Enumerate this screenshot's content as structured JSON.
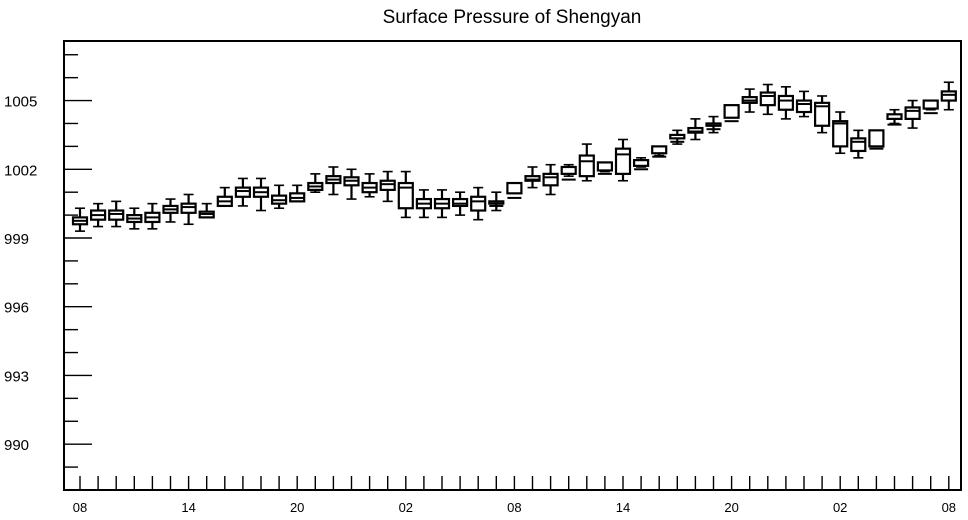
{
  "chart_data": {
    "type": "box",
    "title": "Surface Pressure of Shengyan",
    "xlabel": "",
    "ylabel": "",
    "ylim": [
      988.0,
      1007.6
    ],
    "y_ticks": [
      990,
      993,
      996,
      999,
      1002,
      1005
    ],
    "x_tick_labels": [
      "08",
      "14",
      "20",
      "02",
      "08",
      "14",
      "20",
      "02",
      "08"
    ],
    "x_tick_label_index": [
      0,
      6,
      12,
      18,
      24,
      30,
      36,
      42,
      48
    ],
    "grid": false,
    "legend": "none",
    "series": [
      {
        "x": [
          0,
          1,
          2,
          3,
          4,
          5,
          6,
          7,
          8,
          9,
          10,
          11,
          12,
          13,
          14,
          15,
          16,
          17,
          18,
          19,
          20,
          21,
          22,
          23,
          24,
          25,
          26,
          27,
          28,
          29,
          30,
          31,
          32,
          33,
          34,
          35,
          36,
          37,
          38,
          39,
          40,
          41,
          42,
          43,
          44,
          45,
          46,
          47,
          48
        ],
        "whisker_low": [
          999.3,
          999.5,
          999.5,
          999.4,
          999.4,
          999.7,
          999.6,
          1000.1,
          1000.5,
          1000.4,
          1000.2,
          1000.3,
          1000.7,
          1001.0,
          1000.9,
          1000.7,
          1000.8,
          1000.6,
          999.9,
          999.9,
          999.9,
          1000.0,
          999.8,
          1000.2,
          1001.0,
          1001.2,
          1000.9,
          1001.7,
          1001.5,
          1001.9,
          1001.5,
          1002.1,
          1002.6,
          1003.1,
          1003.3,
          1003.6,
          1004.4,
          1004.5,
          1004.4,
          1004.2,
          1004.3,
          1003.6,
          1002.7,
          1002.5,
          1003.3,
          1004.0,
          1003.8,
          1004.6,
          1004.6
        ],
        "q1": [
          999.6,
          999.8,
          999.8,
          999.7,
          999.7,
          1000.1,
          1000.1,
          999.9,
          1000.4,
          1000.8,
          1000.8,
          1000.5,
          1000.6,
          1001.1,
          1001.4,
          1001.3,
          1001.0,
          1001.1,
          1000.3,
          1000.3,
          1000.3,
          1000.4,
          1000.2,
          1000.5,
          1001.4,
          1001.5,
          1001.3,
          1002.1,
          1001.7,
          1002.3,
          1001.8,
          1002.4,
          1003.0,
          1003.5,
          1003.6,
          1004.0,
          1004.8,
          1004.9,
          1004.8,
          1004.6,
          1004.5,
          1003.9,
          1003.0,
          1002.8,
          1003.7,
          1004.4,
          1004.2,
          1005.0,
          1005.0
        ],
        "median": [
          999.75,
          1000.0,
          1000.05,
          999.85,
          999.9,
          1000.25,
          1000.35,
          1000.05,
          1000.6,
          1001.05,
          1001.0,
          1000.65,
          1000.75,
          1001.25,
          1001.55,
          1001.5,
          1001.2,
          1001.35,
          1001.2,
          1000.5,
          1000.5,
          1000.5,
          1000.6,
          1000.4,
          1000.75,
          1001.55,
          1001.65,
          1001.55,
          1002.35,
          1001.8,
          1002.65,
          1002.0,
          1002.55,
          1003.2,
          1003.65,
          1003.75,
          1004.1,
          1005.0,
          1005.2,
          1005.0,
          1004.85,
          1004.75,
          1004.0,
          1003.2,
          1002.9,
          1003.95,
          1004.55,
          1004.45,
          1005.25
        ],
        "q3": [
          999.9,
          1000.2,
          1000.2,
          1000.0,
          1000.1,
          1000.4,
          1000.5,
          1000.15,
          1000.8,
          1001.2,
          1001.2,
          1000.85,
          1000.95,
          1001.4,
          1001.7,
          1001.65,
          1001.4,
          1001.5,
          1001.4,
          1000.7,
          1000.7,
          1000.7,
          1000.8,
          1000.6,
          1000.95,
          1001.7,
          1001.8,
          1001.8,
          1002.6,
          1001.95,
          1002.9,
          1002.15,
          1002.7,
          1003.35,
          1003.8,
          1003.9,
          1004.25,
          1005.15,
          1005.35,
          1005.2,
          1005.0,
          1004.9,
          1004.1,
          1003.35,
          1003.0,
          1004.2,
          1004.7,
          1004.65,
          1005.4
        ],
        "whisker_high": [
          1000.3,
          1000.5,
          1000.6,
          1000.3,
          1000.5,
          1000.7,
          1000.9,
          1000.5,
          1001.2,
          1001.6,
          1001.6,
          1001.3,
          1001.3,
          1001.8,
          1002.1,
          1002.0,
          1001.8,
          1001.9,
          1001.9,
          1001.1,
          1001.1,
          1001.0,
          1001.2,
          1001.0,
          1001.3,
          1002.1,
          1002.2,
          1002.2,
          1003.1,
          1002.3,
          1003.3,
          1002.5,
          1003.0,
          1003.7,
          1004.2,
          1004.3,
          1004.6,
          1005.5,
          1005.7,
          1005.6,
          1005.4,
          1005.2,
          1004.5,
          1003.7,
          1003.4,
          1004.6,
          1005.0,
          1005.0,
          1005.8
        ]
      }
    ]
  }
}
